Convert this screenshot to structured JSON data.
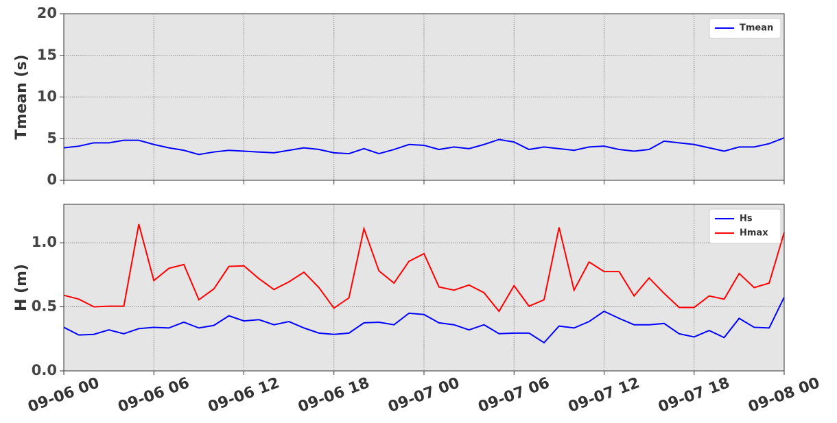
{
  "chart_data": [
    {
      "type": "line",
      "ylabel": "Tmean (s)",
      "x": [
        0,
        1,
        2,
        3,
        4,
        5,
        6,
        7,
        8,
        9,
        10,
        11,
        12,
        13,
        14,
        15,
        16,
        17,
        18,
        19,
        20,
        21,
        22,
        23,
        24,
        25,
        26,
        27,
        28,
        29,
        30,
        31,
        32,
        33,
        34,
        35,
        36,
        37,
        38,
        39,
        40,
        41,
        42,
        43,
        44,
        45,
        46,
        47,
        48
      ],
      "series": [
        {
          "name": "Tmean",
          "color": "#0000ff",
          "values": [
            3.9,
            4.1,
            4.5,
            4.5,
            4.8,
            4.8,
            4.3,
            3.9,
            3.6,
            3.1,
            3.4,
            3.6,
            3.5,
            3.4,
            3.3,
            3.6,
            3.9,
            3.7,
            3.3,
            3.2,
            3.8,
            3.2,
            3.7,
            4.3,
            4.2,
            3.7,
            4.0,
            3.8,
            4.3,
            4.9,
            4.6,
            3.7,
            4.0,
            3.8,
            3.6,
            4.0,
            4.1,
            3.7,
            3.5,
            3.7,
            4.7,
            4.5,
            4.3,
            3.9,
            3.5,
            4.0,
            4.0,
            4.4,
            5.1
          ]
        }
      ],
      "xlim": [
        0,
        48
      ],
      "xticks": [
        0,
        6,
        12,
        18,
        24,
        30,
        36,
        42,
        48
      ],
      "ylim": [
        0,
        20
      ],
      "yticks": [
        0,
        5,
        10,
        15,
        20
      ],
      "grid": true,
      "legend": "upper-right"
    },
    {
      "type": "line",
      "ylabel": "H (m)",
      "x": [
        0,
        1,
        2,
        3,
        4,
        5,
        6,
        7,
        8,
        9,
        10,
        11,
        12,
        13,
        14,
        15,
        16,
        17,
        18,
        19,
        20,
        21,
        22,
        23,
        24,
        25,
        26,
        27,
        28,
        29,
        30,
        31,
        32,
        33,
        34,
        35,
        36,
        37,
        38,
        39,
        40,
        41,
        42,
        43,
        44,
        45,
        46,
        47,
        48
      ],
      "series": [
        {
          "name": "Hs",
          "color": "#0000ff",
          "values": [
            0.34,
            0.28,
            0.285,
            0.32,
            0.29,
            0.33,
            0.34,
            0.335,
            0.38,
            0.335,
            0.355,
            0.43,
            0.39,
            0.4,
            0.36,
            0.385,
            0.335,
            0.295,
            0.285,
            0.295,
            0.375,
            0.38,
            0.36,
            0.45,
            0.44,
            0.375,
            0.36,
            0.32,
            0.36,
            0.29,
            0.295,
            0.295,
            0.22,
            0.35,
            0.335,
            0.385,
            0.465,
            0.41,
            0.36,
            0.36,
            0.37,
            0.29,
            0.265,
            0.315,
            0.26,
            0.41,
            0.34,
            0.335,
            0.575
          ]
        },
        {
          "name": "Hmax",
          "color": "#ff0000",
          "values": [
            0.59,
            0.56,
            0.5,
            0.505,
            0.505,
            1.145,
            0.705,
            0.8,
            0.83,
            0.555,
            0.64,
            0.815,
            0.82,
            0.72,
            0.635,
            0.695,
            0.77,
            0.65,
            0.49,
            0.57,
            1.11,
            0.78,
            0.685,
            0.855,
            0.915,
            0.655,
            0.63,
            0.67,
            0.61,
            0.465,
            0.665,
            0.505,
            0.555,
            1.12,
            0.63,
            0.85,
            0.775,
            0.775,
            0.585,
            0.725,
            0.605,
            0.495,
            0.495,
            0.585,
            0.56,
            0.76,
            0.65,
            0.685,
            1.08
          ]
        }
      ],
      "xlim": [
        0,
        48
      ],
      "xticks": [
        {
          "value": 0,
          "label": "09-06 00"
        },
        {
          "value": 6,
          "label": "09-06 06"
        },
        {
          "value": 12,
          "label": "09-06 12"
        },
        {
          "value": 18,
          "label": "09-06 18"
        },
        {
          "value": 24,
          "label": "09-07 00"
        },
        {
          "value": 30,
          "label": "09-07 06"
        },
        {
          "value": 36,
          "label": "09-07 12"
        },
        {
          "value": 42,
          "label": "09-07 18"
        },
        {
          "value": 48,
          "label": "09-08 00"
        }
      ],
      "ylim": [
        0,
        1.3
      ],
      "yticks": [
        {
          "value": 0,
          "label": "0.0"
        },
        {
          "value": 0.5,
          "label": "0.5"
        },
        {
          "value": 1,
          "label": "1.0"
        }
      ],
      "grid": true,
      "legend": "upper-right"
    }
  ]
}
